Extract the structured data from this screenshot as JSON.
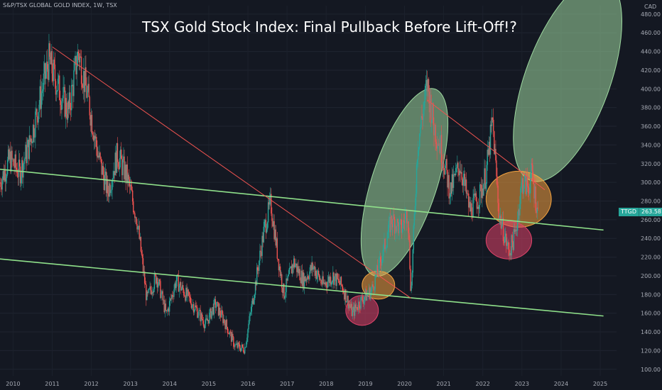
{
  "header": {
    "symbol_line": "S&P/TSX GLOBAL GOLD INDEX, 1W, TSX",
    "currency": "CAD"
  },
  "price_tag": {
    "symbol": "TTGD",
    "value": "263.58",
    "color": "#26a69a"
  },
  "chart_data": {
    "type": "candlestick",
    "title": "TSX Gold Stock Index: Final Pullback Before Lift-Off!?",
    "ylabel": "CAD",
    "ylim": [
      93,
      489
    ],
    "xlim": [
      "2009-09",
      "2025-06"
    ],
    "y_ticks": [
      100,
      120,
      140,
      160,
      180,
      200,
      220,
      240,
      260,
      280,
      300,
      320,
      340,
      360,
      380,
      400,
      420,
      440,
      460,
      480
    ],
    "x_ticks": [
      "2010",
      "2011",
      "2012",
      "2013",
      "2014",
      "2015",
      "2016",
      "2017",
      "2018",
      "2019",
      "2020",
      "2021",
      "2022",
      "2023",
      "2024",
      "2025"
    ],
    "colors": {
      "up": "#26a69a",
      "down": "#ef5350",
      "support": "#8fe08a",
      "resistance": "#ef5350"
    },
    "price_path": [
      [
        "2009-09",
        300
      ],
      [
        "2009-12",
        325
      ],
      [
        "2010-03",
        310
      ],
      [
        "2010-06",
        340
      ],
      [
        "2010-09",
        385
      ],
      [
        "2010-12",
        430
      ],
      [
        "2011-03",
        400
      ],
      [
        "2011-06",
        375
      ],
      [
        "2011-09",
        440
      ],
      [
        "2011-12",
        390
      ],
      [
        "2012-03",
        330
      ],
      [
        "2012-06",
        290
      ],
      [
        "2012-09",
        330
      ],
      [
        "2012-12",
        305
      ],
      [
        "2013-03",
        260
      ],
      [
        "2013-06",
        175
      ],
      [
        "2013-09",
        200
      ],
      [
        "2013-12",
        158
      ],
      [
        "2014-03",
        195
      ],
      [
        "2014-06",
        180
      ],
      [
        "2014-09",
        165
      ],
      [
        "2014-12",
        148
      ],
      [
        "2015-03",
        170
      ],
      [
        "2015-06",
        150
      ],
      [
        "2015-09",
        125
      ],
      [
        "2015-12",
        122
      ],
      [
        "2016-03",
        185
      ],
      [
        "2016-06",
        250
      ],
      [
        "2016-08",
        278
      ],
      [
        "2016-10",
        225
      ],
      [
        "2016-12",
        180
      ],
      [
        "2017-03",
        215
      ],
      [
        "2017-06",
        195
      ],
      [
        "2017-09",
        210
      ],
      [
        "2017-12",
        190
      ],
      [
        "2018-03",
        200
      ],
      [
        "2018-06",
        188
      ],
      [
        "2018-09",
        160
      ],
      [
        "2018-12",
        175
      ],
      [
        "2019-03",
        185
      ],
      [
        "2019-06",
        220
      ],
      [
        "2019-09",
        260
      ],
      [
        "2019-12",
        250
      ],
      [
        "2020-02",
        270
      ],
      [
        "2020-03",
        180
      ],
      [
        "2020-05",
        340
      ],
      [
        "2020-08",
        405
      ],
      [
        "2020-10",
        360
      ],
      [
        "2020-12",
        340
      ],
      [
        "2021-03",
        290
      ],
      [
        "2021-06",
        320
      ],
      [
        "2021-09",
        270
      ],
      [
        "2021-12",
        285
      ],
      [
        "2022-02",
        310
      ],
      [
        "2022-04",
        365
      ],
      [
        "2022-06",
        265
      ],
      [
        "2022-09",
        225
      ],
      [
        "2022-11",
        245
      ],
      [
        "2023-01",
        300
      ],
      [
        "2023-03",
        295
      ],
      [
        "2023-04",
        310
      ],
      [
        "2023-06",
        264
      ]
    ],
    "trendlines": [
      {
        "kind": "support",
        "points": [
          [
            "2009-09",
            314
          ],
          [
            "2025-02",
            249
          ]
        ]
      },
      {
        "kind": "support",
        "points": [
          [
            "2009-09",
            218
          ],
          [
            "2025-02",
            157
          ]
        ]
      },
      {
        "kind": "resistance",
        "points": [
          [
            "2011-01",
            445
          ],
          [
            "2020-03",
            176
          ]
        ]
      },
      {
        "kind": "resistance",
        "points": [
          [
            "2020-08",
            388
          ],
          [
            "2023-08",
            292
          ]
        ]
      }
    ],
    "ellipses": [
      {
        "fill": "#9ed9a0",
        "center": [
          "2020-01",
          300
        ],
        "rx_months": 10,
        "ry": 105,
        "tilt_deg": 18
      },
      {
        "fill": "#9ed9a0",
        "center": [
          "2024-03",
          410
        ],
        "rx_months": 13,
        "ry": 115,
        "tilt_deg": 20
      },
      {
        "fill": "#f4a340",
        "center": [
          "2022-12",
          282
        ],
        "rx_months": 10,
        "ry": 30
      },
      {
        "fill": "#f4a340",
        "center": [
          "2019-05",
          190
        ],
        "rx_months": 5,
        "ry": 15
      },
      {
        "fill": "#e0436a",
        "center": [
          "2018-12",
          163
        ],
        "rx_months": 5,
        "ry": 16
      },
      {
        "fill": "#e0436a",
        "center": [
          "2022-09",
          238
        ],
        "rx_months": 7,
        "ry": 20
      }
    ]
  }
}
